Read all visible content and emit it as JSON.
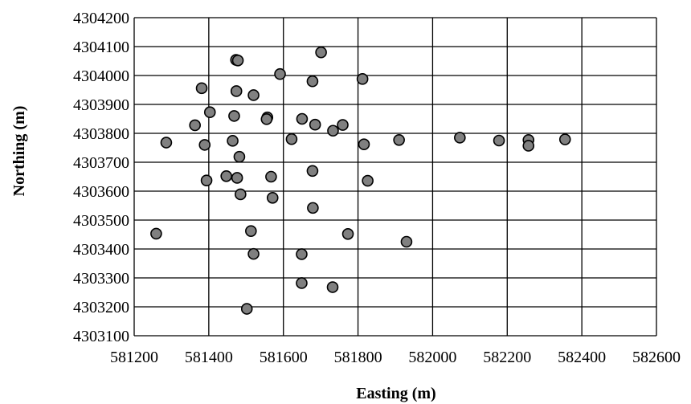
{
  "chart_data": {
    "type": "scatter",
    "title": "",
    "xlabel": "Easting (m)",
    "ylabel": "Northing (m)",
    "xlim": [
      581200,
      582600
    ],
    "ylim": [
      4303100,
      4304200
    ],
    "xticks": [
      581200,
      581400,
      581600,
      581800,
      582000,
      582200,
      582400,
      582600
    ],
    "yticks": [
      4303100,
      4303200,
      4303300,
      4303400,
      4303500,
      4303600,
      4303700,
      4303800,
      4303900,
      4304000,
      4304100,
      4304200
    ],
    "grid": true,
    "marker_color": "#808080",
    "marker_edge": "#000000",
    "series": [
      {
        "points": [
          [
            581473,
            4304054
          ],
          [
            581478,
            4304052
          ],
          [
            581701,
            4304080
          ],
          [
            581591,
            4304005
          ],
          [
            581678,
            4303980
          ],
          [
            581812,
            4303988
          ],
          [
            581381,
            4303956
          ],
          [
            581474,
            4303946
          ],
          [
            581520,
            4303932
          ],
          [
            581403,
            4303873
          ],
          [
            581468,
            4303860
          ],
          [
            581557,
            4303855
          ],
          [
            581555,
            4303849
          ],
          [
            581650,
            4303850
          ],
          [
            581685,
            4303830
          ],
          [
            581759,
            4303829
          ],
          [
            581363,
            4303828
          ],
          [
            581733,
            4303809
          ],
          [
            581622,
            4303780
          ],
          [
            581286,
            4303768
          ],
          [
            581389,
            4303760
          ],
          [
            581464,
            4303774
          ],
          [
            581816,
            4303762
          ],
          [
            581910,
            4303777
          ],
          [
            582073,
            4303785
          ],
          [
            582178,
            4303775
          ],
          [
            582257,
            4303777
          ],
          [
            582257,
            4303757
          ],
          [
            582355,
            4303779
          ],
          [
            581482,
            4303719
          ],
          [
            581447,
            4303652
          ],
          [
            581476,
            4303646
          ],
          [
            581567,
            4303650
          ],
          [
            581678,
            4303670
          ],
          [
            581826,
            4303636
          ],
          [
            581394,
            4303637
          ],
          [
            581485,
            4303589
          ],
          [
            581571,
            4303577
          ],
          [
            581679,
            4303542
          ],
          [
            581259,
            4303453
          ],
          [
            581513,
            4303462
          ],
          [
            581773,
            4303452
          ],
          [
            581930,
            4303425
          ],
          [
            581520,
            4303383
          ],
          [
            581649,
            4303382
          ],
          [
            581649,
            4303282
          ],
          [
            581732,
            4303268
          ],
          [
            581502,
            4303193
          ]
        ]
      }
    ]
  }
}
